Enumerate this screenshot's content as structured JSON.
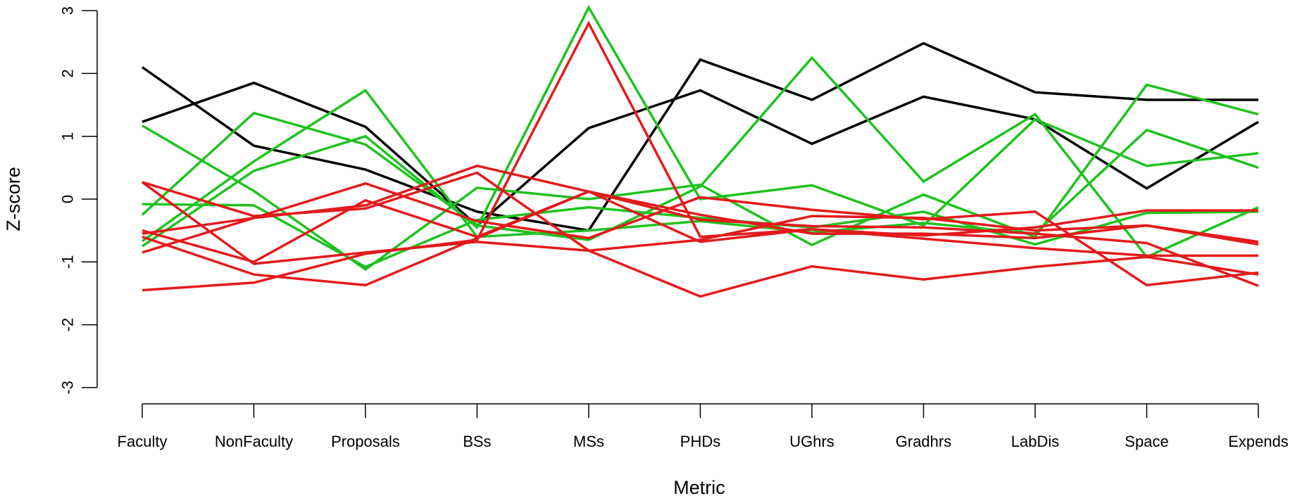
{
  "chart_data": {
    "type": "line",
    "title": "",
    "xlabel": "Metric",
    "ylabel": "Z-score",
    "categories": [
      "Faculty",
      "NonFaculty",
      "Proposals",
      "BSs",
      "MSs",
      "PHDs",
      "UGhrs",
      "Gradhrs",
      "LabDis",
      "Space",
      "Expends"
    ],
    "ylim": [
      -3,
      3
    ],
    "yticks": [
      -3,
      -2,
      -1,
      0,
      1,
      2,
      3
    ],
    "grid": false,
    "legend": "none",
    "colors": {
      "black": "#000000",
      "green": "#1fc21f",
      "red": "#e31a1c"
    },
    "series": [
      {
        "color": "black",
        "values": [
          2.1,
          0.85,
          0.47,
          -0.2,
          -0.5,
          2.22,
          1.58,
          2.48,
          1.7,
          1.58,
          1.58
        ]
      },
      {
        "color": "black",
        "values": [
          1.23,
          1.85,
          1.15,
          -0.42,
          1.13,
          1.73,
          0.88,
          1.63,
          1.27,
          0.17,
          1.23
        ]
      },
      {
        "color": "green",
        "values": [
          1.17,
          0.13,
          -1.12,
          0.18,
          0.0,
          0.23,
          -0.73,
          0.07,
          -0.6,
          1.82,
          1.35
        ]
      },
      {
        "color": "green",
        "values": [
          -0.25,
          1.37,
          0.87,
          -0.42,
          -0.65,
          0.2,
          2.25,
          0.28,
          1.35,
          -0.92,
          -0.13
        ]
      },
      {
        "color": "green",
        "values": [
          -0.75,
          0.45,
          1.0,
          -0.45,
          3.05,
          0.0,
          0.22,
          -0.42,
          1.27,
          0.53,
          0.73
        ]
      },
      {
        "color": "green",
        "values": [
          -0.67,
          0.6,
          1.73,
          -0.6,
          -0.5,
          -0.35,
          -0.53,
          -0.38,
          -0.55,
          1.1,
          0.5
        ]
      },
      {
        "color": "green",
        "values": [
          -0.08,
          -0.1,
          -1.08,
          -0.33,
          -0.13,
          -0.3,
          -0.45,
          -0.2,
          -0.72,
          -0.22,
          -0.2
        ]
      },
      {
        "color": "red",
        "values": [
          -1.45,
          -1.33,
          -0.87,
          -0.65,
          2.8,
          -0.6,
          -0.48,
          -0.58,
          -0.45,
          -0.18,
          -0.18
        ]
      },
      {
        "color": "red",
        "values": [
          0.27,
          -1.03,
          -0.85,
          -0.68,
          -0.82,
          -0.65,
          -0.27,
          -0.3,
          -0.5,
          -0.42,
          -0.72
        ]
      },
      {
        "color": "red",
        "values": [
          -0.6,
          -1.2,
          -1.37,
          -0.62,
          0.12,
          -0.68,
          -0.48,
          -0.63,
          -0.78,
          -0.9,
          -0.9
        ]
      },
      {
        "color": "red",
        "values": [
          0.27,
          -0.27,
          -0.15,
          0.42,
          -0.82,
          -1.55,
          -1.07,
          -1.28,
          -1.08,
          -0.92,
          -1.2
        ]
      },
      {
        "color": "red",
        "values": [
          -0.85,
          -0.3,
          0.25,
          -0.35,
          -0.62,
          0.03,
          -0.17,
          -0.32,
          -0.2,
          -1.37,
          -1.17
        ]
      },
      {
        "color": "red",
        "values": [
          -0.5,
          -1.0,
          -0.02,
          -0.6,
          0.12,
          -0.25,
          -0.55,
          -0.55,
          -0.62,
          -0.42,
          -0.68
        ]
      },
      {
        "color": "red",
        "values": [
          -0.55,
          -0.3,
          -0.1,
          0.53,
          0.12,
          -0.33,
          -0.43,
          -0.45,
          -0.55,
          -0.7,
          -1.38
        ]
      }
    ]
  }
}
